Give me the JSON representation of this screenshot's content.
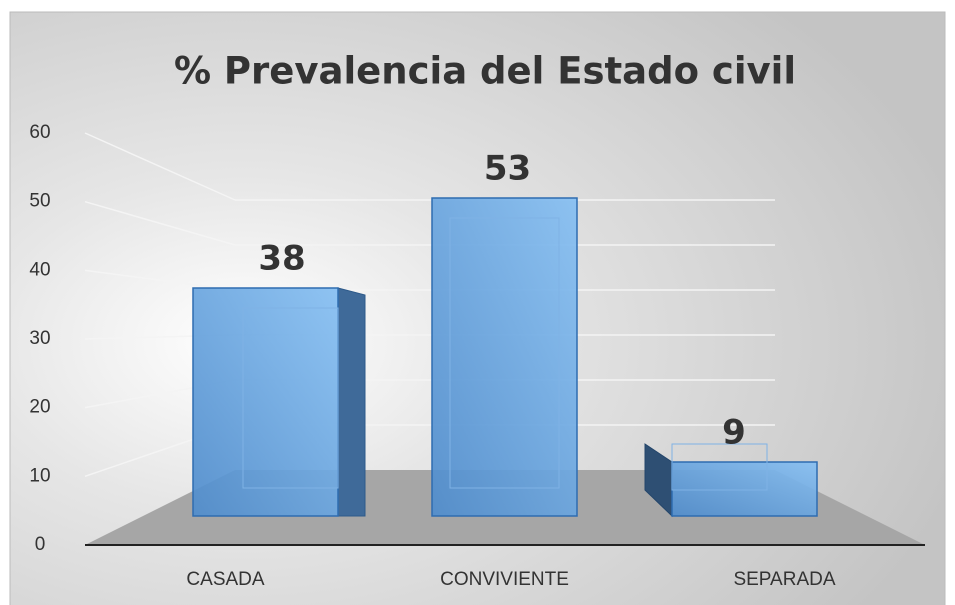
{
  "chart_data": {
    "type": "bar3d",
    "title": "% Prevalencia del Estado civil",
    "categories": [
      "CASADA",
      "CONVIVIENTE",
      "SEPARADA"
    ],
    "values": [
      38,
      53,
      9
    ],
    "color": "#5b9bd5",
    "ylim": [
      0,
      60
    ],
    "yticks": [
      0,
      10,
      20,
      30,
      40,
      50,
      60
    ],
    "grid": true
  }
}
